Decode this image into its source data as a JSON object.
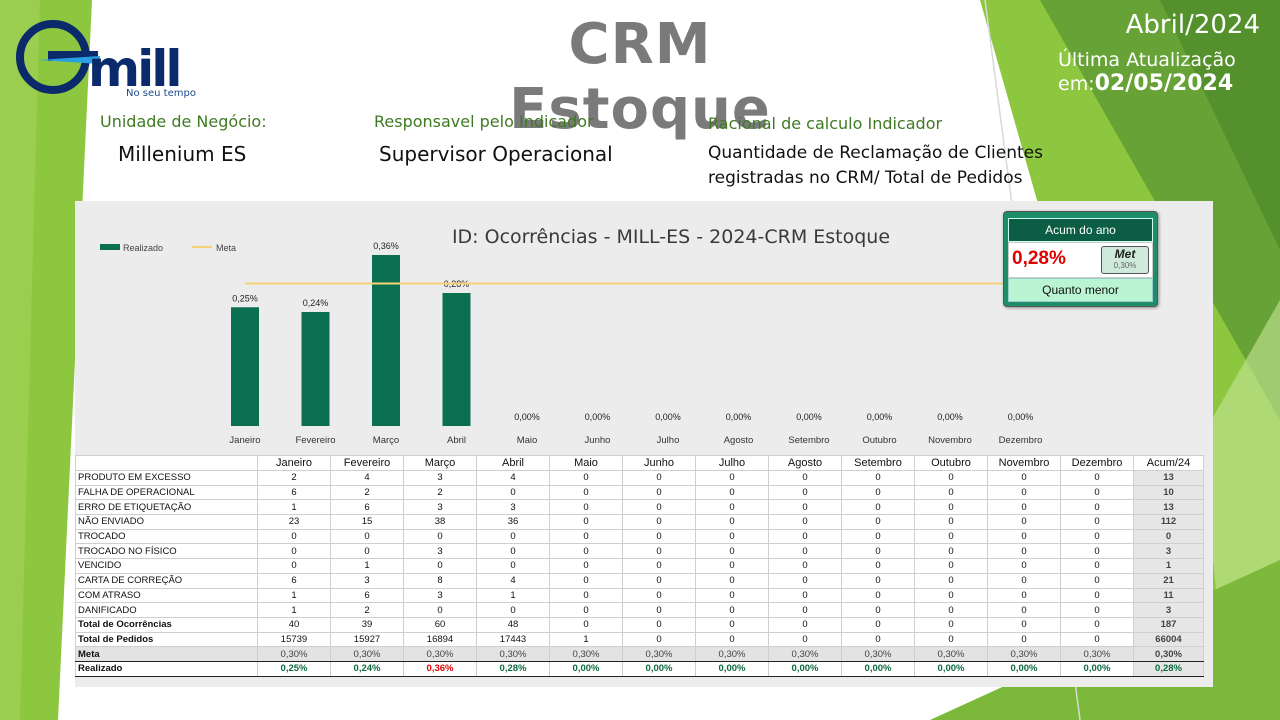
{
  "brand": {
    "name": "mill",
    "slogan": "No seu tempo"
  },
  "header": {
    "title": "CRM Estoque",
    "period": "Abril/2024",
    "update_label": "Última Atualização em:",
    "update_date": "02/05/2024"
  },
  "info": {
    "unit_label": "Unidade de Negócio:",
    "unit_value": "Millenium ES",
    "owner_label": "Responsavel pelo Indicador",
    "owner_value": "Supervisor Operacional",
    "rational_label": "Racional de calculo Indicador",
    "rational_value_1": "Quantidade de Reclamação de Clientes",
    "rational_value_2": "registradas no CRM/ Total de Pedidos"
  },
  "summary": {
    "title": "Acum do ano",
    "value": "0,28%",
    "meta_label": "Met",
    "meta_value": "0,30%",
    "direction": "Quanto menor"
  },
  "colors": {
    "bar": "#0b7052",
    "meta_line": "#f5d275",
    "accent_green": "#8dc63f",
    "bad": "#e00000"
  },
  "chart_data": {
    "type": "bar",
    "title": "ID: Ocorrências - MILL-ES - 2024-CRM Estoque",
    "categories": [
      "Janeiro",
      "Fevereiro",
      "Março",
      "Abril",
      "Maio",
      "Junho",
      "Julho",
      "Agosto",
      "Setembro",
      "Outubro",
      "Novembro",
      "Dezembro"
    ],
    "series": [
      {
        "name": "Realizado",
        "kind": "bar",
        "values": [
          0.25,
          0.24,
          0.36,
          0.28,
          0,
          0,
          0,
          0,
          0,
          0,
          0,
          0
        ],
        "labels": [
          "0,25%",
          "0,24%",
          "0,36%",
          "0,28%",
          "0,00%",
          "0,00%",
          "0,00%",
          "0,00%",
          "0,00%",
          "0,00%",
          "0,00%",
          "0,00%"
        ]
      },
      {
        "name": "Meta",
        "kind": "line",
        "values": [
          0.3,
          0.3,
          0.3,
          0.3,
          0.3,
          0.3,
          0.3,
          0.3,
          0.3,
          0.3,
          0.3,
          0.3
        ]
      }
    ],
    "ylim": [
      0,
      0.4
    ],
    "grid": false,
    "legend": "top-left"
  },
  "table": {
    "headers": [
      "",
      "Janeiro",
      "Fevereiro",
      "Março",
      "Abril",
      "Maio",
      "Junho",
      "Julho",
      "Agosto",
      "Setembro",
      "Outubro",
      "Novembro",
      "Dezembro",
      "Acum/24"
    ],
    "rows": [
      {
        "label": "PRODUTO EM EXCESSO",
        "values": [
          "2",
          "4",
          "3",
          "4",
          "0",
          "0",
          "0",
          "0",
          "0",
          "0",
          "0",
          "0"
        ],
        "total": "13"
      },
      {
        "label": "FALHA DE OPERACIONAL",
        "values": [
          "6",
          "2",
          "2",
          "0",
          "0",
          "0",
          "0",
          "0",
          "0",
          "0",
          "0",
          "0"
        ],
        "total": "10"
      },
      {
        "label": "ERRO DE ETIQUETAÇÃO",
        "values": [
          "1",
          "6",
          "3",
          "3",
          "0",
          "0",
          "0",
          "0",
          "0",
          "0",
          "0",
          "0"
        ],
        "total": "13"
      },
      {
        "label": "NÃO ENVIADO",
        "values": [
          "23",
          "15",
          "38",
          "36",
          "0",
          "0",
          "0",
          "0",
          "0",
          "0",
          "0",
          "0"
        ],
        "total": "112"
      },
      {
        "label": "TROCADO",
        "values": [
          "0",
          "0",
          "0",
          "0",
          "0",
          "0",
          "0",
          "0",
          "0",
          "0",
          "0",
          "0"
        ],
        "total": "0"
      },
      {
        "label": "TROCADO NO FÍSICO",
        "values": [
          "0",
          "0",
          "3",
          "0",
          "0",
          "0",
          "0",
          "0",
          "0",
          "0",
          "0",
          "0"
        ],
        "total": "3"
      },
      {
        "label": "VENCIDO",
        "values": [
          "0",
          "1",
          "0",
          "0",
          "0",
          "0",
          "0",
          "0",
          "0",
          "0",
          "0",
          "0"
        ],
        "total": "1"
      },
      {
        "label": "CARTA DE CORREÇÃO",
        "values": [
          "6",
          "3",
          "8",
          "4",
          "0",
          "0",
          "0",
          "0",
          "0",
          "0",
          "0",
          "0"
        ],
        "total": "21"
      },
      {
        "label": "COM ATRASO",
        "values": [
          "1",
          "6",
          "3",
          "1",
          "0",
          "0",
          "0",
          "0",
          "0",
          "0",
          "0",
          "0"
        ],
        "total": "11"
      },
      {
        "label": "DANIFICADO",
        "values": [
          "1",
          "2",
          "0",
          "0",
          "0",
          "0",
          "0",
          "0",
          "0",
          "0",
          "0",
          "0"
        ],
        "total": "3"
      }
    ],
    "total_occ": {
      "label": "Total de Ocorrências",
      "values": [
        "40",
        "39",
        "60",
        "48",
        "0",
        "0",
        "0",
        "0",
        "0",
        "0",
        "0",
        "0"
      ],
      "total": "187"
    },
    "total_orders": {
      "label": "Total de Pedidos",
      "values": [
        "15739",
        "15927",
        "16894",
        "17443",
        "1",
        "0",
        "0",
        "0",
        "0",
        "0",
        "0",
        "0"
      ],
      "total": "66004"
    },
    "meta": {
      "label": "Meta",
      "values": [
        "0,30%",
        "0,30%",
        "0,30%",
        "0,30%",
        "0,30%",
        "0,30%",
        "0,30%",
        "0,30%",
        "0,30%",
        "0,30%",
        "0,30%",
        "0,30%"
      ],
      "total": "0,30%"
    },
    "realizado": {
      "label": "Realizado",
      "values": [
        "0,25%",
        "0,24%",
        "0,36%",
        "0,28%",
        "0,00%",
        "0,00%",
        "0,00%",
        "0,00%",
        "0,00%",
        "0,00%",
        "0,00%",
        "0,00%"
      ],
      "total": "0,28%",
      "bad_index": 2
    }
  }
}
